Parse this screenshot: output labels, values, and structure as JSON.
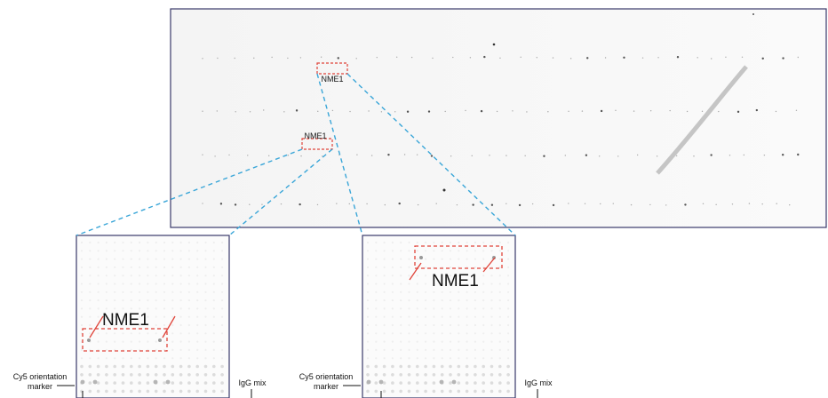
{
  "array": {
    "labels": [
      "NME1",
      "NME1"
    ]
  },
  "zooms": [
    {
      "label": "NME1",
      "marker": [
        "Cy5 orientation",
        "marker"
      ],
      "igg": "IgG mix"
    },
    {
      "label": "NME1",
      "marker": [
        "Cy5 orientation",
        "marker"
      ],
      "igg": "IgG mix"
    }
  ]
}
